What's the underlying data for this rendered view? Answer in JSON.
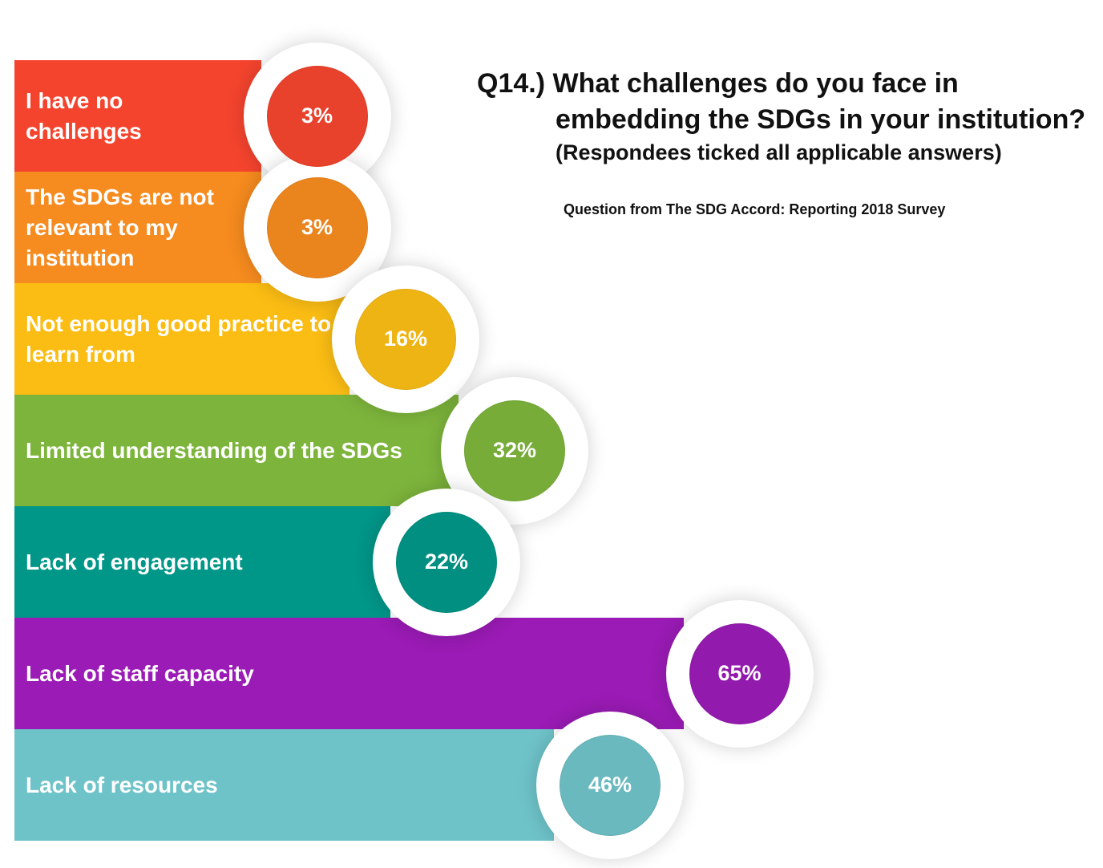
{
  "chart_data": {
    "type": "bar",
    "orientation": "horizontal",
    "title": "Q14.) What challenges do you face in embedding the SDGs in your institution?",
    "subtitle": "(Respondees ticked all applicable answers)",
    "source": "Question from The SDG Accord: Reporting 2018 Survey",
    "categories": [
      "I have no challenges",
      "The SDGs are not relevant to my institution",
      "Not enough good practice to learn from",
      "Limited understanding of the SDGs",
      "Lack of engagement",
      "Lack of staff capacity",
      "Lack of resources"
    ],
    "values": [
      3,
      3,
      16,
      32,
      22,
      65,
      46
    ],
    "value_labels": [
      "3%",
      "3%",
      "16%",
      "32%",
      "22%",
      "65%",
      "46%"
    ],
    "colors": [
      "#f4442e",
      "#f68b1f",
      "#fbbd14",
      "#7db53c",
      "#009688",
      "#9a1bb5",
      "#6ec3c9"
    ]
  }
}
